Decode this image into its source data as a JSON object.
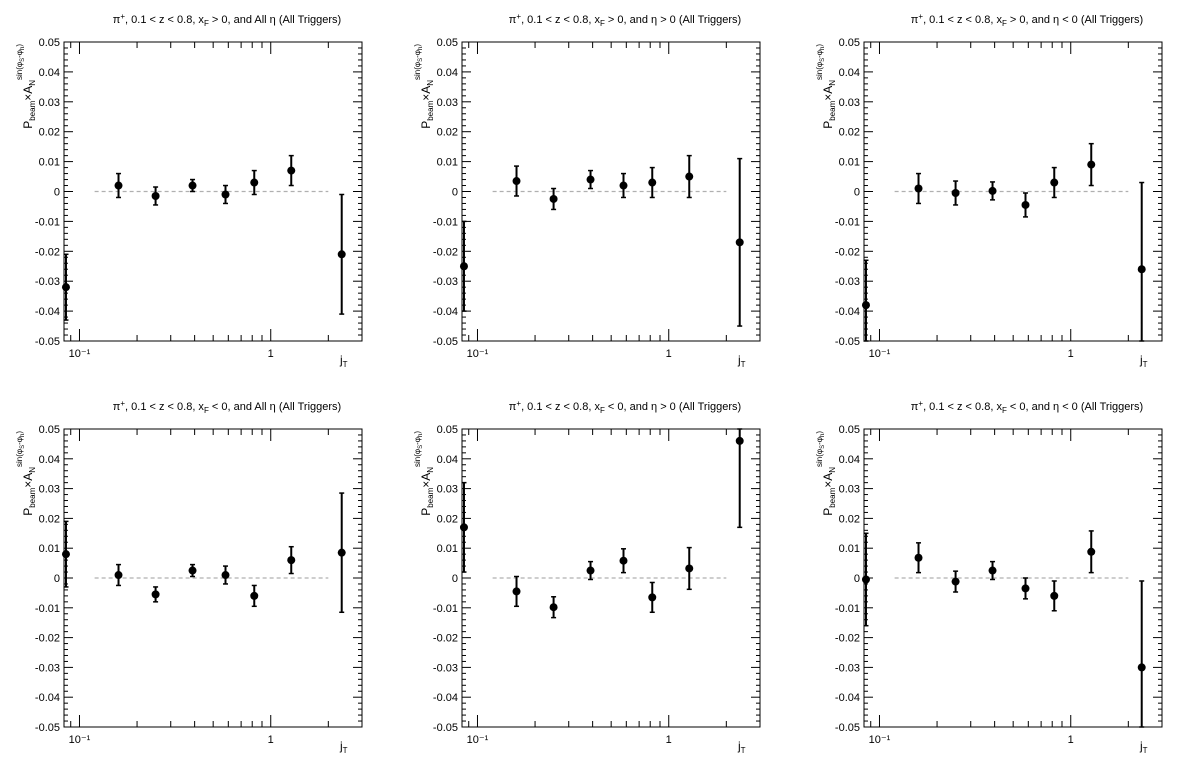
{
  "chart_data": [
    {
      "type": "scatter",
      "title": "π⁺, 0.1 < z < 0.8, x_F > 0, and All η (All Triggers)",
      "title_parts": {
        "pre": "π",
        "pre_sup": "+",
        "mid": ", 0.1 < z < 0.8, x",
        "mid_sub": "F",
        "post": " > 0, and All η (All Triggers)"
      },
      "xlabel": "j_T",
      "ylabel": "P_beam×A_N^sin(φ_S-φ_h)",
      "xscale": "log",
      "xlim": [
        0.083,
        3.0
      ],
      "ylim": [
        -0.05,
        0.05
      ],
      "x_tick_labels": [
        "10⁻¹",
        "1"
      ],
      "y_tick_labels": [
        "-0.05",
        "-0.04",
        "-0.03",
        "-0.02",
        "-0.01",
        "0",
        "0.01",
        "0.02",
        "0.03",
        "0.04",
        "0.05"
      ],
      "reference_line": {
        "y": 0,
        "x_range": [
          0.12,
          2.0
        ],
        "style": "dashed",
        "color": "#b0b0b0"
      },
      "x": [
        0.085,
        0.16,
        0.25,
        0.39,
        0.58,
        0.82,
        1.28,
        2.35
      ],
      "y": [
        -0.032,
        0.002,
        -0.0015,
        0.002,
        -0.001,
        0.003,
        0.007,
        -0.021
      ],
      "yerr": [
        0.011,
        0.004,
        0.003,
        0.002,
        0.003,
        0.004,
        0.005,
        0.02
      ]
    },
    {
      "type": "scatter",
      "title": "π⁺, 0.1 < z < 0.8, x_F > 0, and η > 0 (All Triggers)",
      "title_parts": {
        "pre": "π",
        "pre_sup": "+",
        "mid": ", 0.1 < z < 0.8, x",
        "mid_sub": "F",
        "post": " > 0, and η > 0 (All Triggers)"
      },
      "xlabel": "j_T",
      "ylabel": "P_beam×A_N^sin(φ_S-φ_h)",
      "xscale": "log",
      "xlim": [
        0.083,
        3.0
      ],
      "ylim": [
        -0.05,
        0.05
      ],
      "x_tick_labels": [
        "10⁻¹",
        "1"
      ],
      "y_tick_labels": [
        "-0.05",
        "-0.04",
        "-0.03",
        "-0.02",
        "-0.01",
        "0",
        "0.01",
        "0.02",
        "0.03",
        "0.04",
        "0.05"
      ],
      "reference_line": {
        "y": 0,
        "x_range": [
          0.12,
          2.0
        ],
        "style": "dashed",
        "color": "#b0b0b0"
      },
      "x": [
        0.085,
        0.16,
        0.25,
        0.39,
        0.58,
        0.82,
        1.28,
        2.35
      ],
      "y": [
        -0.025,
        0.0035,
        -0.0025,
        0.004,
        0.002,
        0.003,
        0.005,
        -0.017
      ],
      "yerr": [
        0.015,
        0.005,
        0.0035,
        0.003,
        0.004,
        0.005,
        0.007,
        0.028
      ]
    },
    {
      "type": "scatter",
      "title": "π⁺, 0.1 < z < 0.8, x_F > 0, and η < 0 (All Triggers)",
      "title_parts": {
        "pre": "π",
        "pre_sup": "+",
        "mid": ", 0.1 < z < 0.8, x",
        "mid_sub": "F",
        "post": " > 0, and η < 0 (All Triggers)"
      },
      "xlabel": "j_T",
      "ylabel": "P_beam×A_N^sin(φ_S-φ_h)",
      "xscale": "log",
      "xlim": [
        0.083,
        3.0
      ],
      "ylim": [
        -0.05,
        0.05
      ],
      "x_tick_labels": [
        "10⁻¹",
        "1"
      ],
      "y_tick_labels": [
        "-0.05",
        "-0.04",
        "-0.03",
        "-0.02",
        "-0.01",
        "0",
        "0.01",
        "0.02",
        "0.03",
        "0.04",
        "0.05"
      ],
      "reference_line": {
        "y": 0,
        "x_range": [
          0.12,
          2.0
        ],
        "style": "dashed",
        "color": "#b0b0b0"
      },
      "x": [
        0.085,
        0.16,
        0.25,
        0.39,
        0.58,
        0.82,
        1.28,
        2.35
      ],
      "y": [
        -0.038,
        0.001,
        -0.0005,
        0.0002,
        -0.0045,
        0.003,
        0.009,
        -0.026
      ],
      "yerr": [
        0.015,
        0.005,
        0.004,
        0.003,
        0.004,
        0.005,
        0.007,
        0.029
      ]
    },
    {
      "type": "scatter",
      "title": "π⁺, 0.1 < z < 0.8, x_F < 0, and All η (All Triggers)",
      "title_parts": {
        "pre": "π",
        "pre_sup": "+",
        "mid": ", 0.1 < z < 0.8, x",
        "mid_sub": "F",
        "post": " < 0, and All η (All Triggers)"
      },
      "xlabel": "j_T",
      "ylabel": "P_beam×A_N^sin(φ_S-φ_h)",
      "xscale": "log",
      "xlim": [
        0.083,
        3.0
      ],
      "ylim": [
        -0.05,
        0.05
      ],
      "x_tick_labels": [
        "10⁻¹",
        "1"
      ],
      "y_tick_labels": [
        "-0.05",
        "-0.04",
        "-0.03",
        "-0.02",
        "-0.01",
        "0",
        "0.01",
        "0.02",
        "0.03",
        "0.04",
        "0.05"
      ],
      "reference_line": {
        "y": 0,
        "x_range": [
          0.12,
          2.0
        ],
        "style": "dashed",
        "color": "#b0b0b0"
      },
      "x": [
        0.085,
        0.16,
        0.25,
        0.39,
        0.58,
        0.82,
        1.28,
        2.35
      ],
      "y": [
        0.008,
        0.001,
        -0.0055,
        0.0025,
        0.001,
        -0.006,
        0.006,
        0.0085
      ],
      "yerr": [
        0.011,
        0.0035,
        0.0025,
        0.002,
        0.003,
        0.0035,
        0.0045,
        0.02
      ]
    },
    {
      "type": "scatter",
      "title": "π⁺, 0.1 < z < 0.8, x_F < 0, and η > 0 (All Triggers)",
      "title_parts": {
        "pre": "π",
        "pre_sup": "+",
        "mid": ", 0.1 < z < 0.8, x",
        "mid_sub": "F",
        "post": " < 0, and η > 0 (All Triggers)"
      },
      "xlabel": "j_T",
      "ylabel": "P_beam×A_N^sin(φ_S-φ_h)",
      "xscale": "log",
      "xlim": [
        0.083,
        3.0
      ],
      "ylim": [
        -0.05,
        0.05
      ],
      "x_tick_labels": [
        "10⁻¹",
        "1"
      ],
      "y_tick_labels": [
        "-0.05",
        "-0.04",
        "-0.03",
        "-0.02",
        "-0.01",
        "0",
        "0.01",
        "0.02",
        "0.03",
        "0.04",
        "0.05"
      ],
      "reference_line": {
        "y": 0,
        "x_range": [
          0.12,
          2.0
        ],
        "style": "dashed",
        "color": "#b0b0b0"
      },
      "x": [
        0.085,
        0.16,
        0.25,
        0.39,
        0.58,
        0.82,
        1.28,
        2.35
      ],
      "y": [
        0.017,
        -0.0045,
        -0.0098,
        0.0025,
        0.0058,
        -0.0065,
        0.0032,
        0.046
      ],
      "yerr": [
        0.015,
        0.005,
        0.0035,
        0.003,
        0.004,
        0.005,
        0.007,
        0.029
      ]
    },
    {
      "type": "scatter",
      "title": "π⁺, 0.1 < z < 0.8, x_F < 0, and η < 0 (All Triggers)",
      "title_parts": {
        "pre": "π",
        "pre_sup": "+",
        "mid": ", 0.1 < z < 0.8, x",
        "mid_sub": "F",
        "post": " < 0, and η < 0 (All Triggers)"
      },
      "xlabel": "j_T",
      "ylabel": "P_beam×A_N^sin(φ_S-φ_h)",
      "xscale": "log",
      "xlim": [
        0.083,
        3.0
      ],
      "ylim": [
        -0.05,
        0.05
      ],
      "x_tick_labels": [
        "10⁻¹",
        "1"
      ],
      "y_tick_labels": [
        "-0.05",
        "-0.04",
        "-0.03",
        "-0.02",
        "-0.01",
        "0",
        "0.01",
        "0.02",
        "0.03",
        "0.04",
        "0.05"
      ],
      "reference_line": {
        "y": 0,
        "x_range": [
          0.12,
          2.0
        ],
        "style": "dashed",
        "color": "#b0b0b0"
      },
      "x": [
        0.085,
        0.16,
        0.25,
        0.39,
        0.58,
        0.82,
        1.28,
        2.35
      ],
      "y": [
        -0.0005,
        0.0068,
        -0.0012,
        0.0025,
        -0.0035,
        -0.006,
        0.0088,
        -0.03
      ],
      "yerr": [
        0.0155,
        0.005,
        0.0035,
        0.003,
        0.0035,
        0.005,
        0.007,
        0.029
      ]
    }
  ]
}
